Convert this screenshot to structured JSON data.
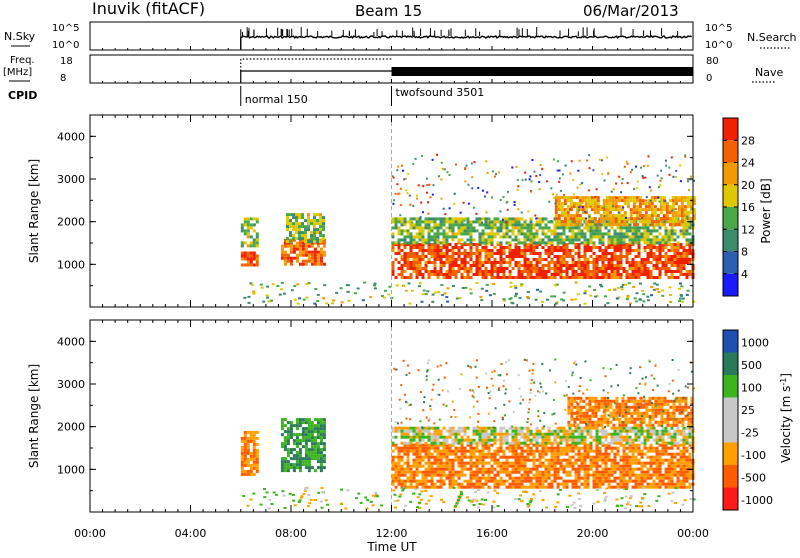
{
  "header": {
    "station": "Inuvik (fitACF)",
    "beam": "Beam 15",
    "date": "06/Mar/2013"
  },
  "panel_labels": {
    "nsky": "N.Sky",
    "nsky_tick_top": "10^5",
    "nsky_tick_bottom": "10^0",
    "nsearch": "N.Search",
    "nsearch_tick_top": "10^5",
    "nsearch_tick_bottom": "10^0",
    "freq": "Freq.",
    "freq_unit": "[MHz]",
    "freq_tick_top": "18",
    "freq_tick_bottom": "8",
    "nave": "Nave",
    "nave_tick_top": "80",
    "nave_tick_bottom": "0",
    "cpid": "CPID"
  },
  "cpid_segments": [
    {
      "label": "normal 150",
      "start_hour": 6
    },
    {
      "label": "twofsound 3501",
      "start_hour": 12
    }
  ],
  "time_axis": {
    "label": "Time UT",
    "ticks": [
      "00:00",
      "04:00",
      "08:00",
      "12:00",
      "16:00",
      "20:00",
      "00:00"
    ]
  },
  "colors": {
    "power_scale": [
      "#1a1aff",
      "#2b5fb0",
      "#3c8c6e",
      "#4aa84a",
      "#e0c800",
      "#f39a00",
      "#f26000",
      "#f02000"
    ],
    "velocity_scale": [
      "#ff1a1a",
      "#ff5c00",
      "#ffa000",
      "#c8c8c8",
      "#c8c8c8",
      "#3cb41e",
      "#2a7a5a",
      "#1f4fb0"
    ]
  },
  "chart_data": [
    {
      "type": "heatmap",
      "name": "power",
      "ylabel": "Slant Range [km]",
      "yticks": [
        "1000",
        "2000",
        "3000",
        "4000"
      ],
      "ylim": [
        0,
        4500
      ],
      "xlim": [
        0,
        24
      ],
      "colorbar": {
        "label": "Power [dB]",
        "ticks": [
          "4",
          "8",
          "12",
          "16",
          "20",
          "24",
          "28"
        ],
        "range": [
          0,
          30
        ]
      },
      "regions": [
        {
          "t0": 6.0,
          "t1": 6.7,
          "r0": 1000,
          "r1": 1300,
          "value": 26
        },
        {
          "t0": 6.0,
          "t1": 6.6,
          "r0": 1400,
          "r1": 2100,
          "value": 14
        },
        {
          "t0": 7.6,
          "t1": 9.3,
          "r0": 1000,
          "r1": 1600,
          "value": 24
        },
        {
          "t0": 7.8,
          "t1": 9.3,
          "r0": 1500,
          "r1": 2200,
          "value": 14
        },
        {
          "t0": 12.0,
          "t1": 24.0,
          "r0": 700,
          "r1": 1500,
          "value": 26
        },
        {
          "t0": 12.0,
          "t1": 24.0,
          "r0": 1500,
          "r1": 2100,
          "value": 14
        },
        {
          "t0": 18.5,
          "t1": 24.0,
          "r0": 1900,
          "r1": 2600,
          "value": 20
        }
      ]
    },
    {
      "type": "heatmap",
      "name": "velocity",
      "ylabel": "Slant Range [km]",
      "yticks": [
        "1000",
        "2000",
        "3000",
        "4000"
      ],
      "ylim": [
        0,
        4500
      ],
      "xlim": [
        0,
        24
      ],
      "colorbar": {
        "label": "Velocity [m s^-1]",
        "ticks": [
          "1000",
          "500",
          "100",
          "25",
          "-25",
          "-100",
          "-500",
          "-1000"
        ]
      },
      "regions": [
        {
          "t0": 6.0,
          "t1": 6.7,
          "r0": 900,
          "r1": 1900,
          "value": -100
        },
        {
          "t0": 7.6,
          "t1": 9.3,
          "r0": 1000,
          "r1": 2200,
          "value": 100
        },
        {
          "t0": 12.0,
          "t1": 24.0,
          "r0": 600,
          "r1": 1600,
          "value": -100
        },
        {
          "t0": 12.0,
          "t1": 24.0,
          "r0": 1600,
          "r1": 2000,
          "value": 0
        },
        {
          "t0": 19.0,
          "t1": 24.0,
          "r0": 2000,
          "r1": 2700,
          "value": -100
        }
      ]
    }
  ]
}
